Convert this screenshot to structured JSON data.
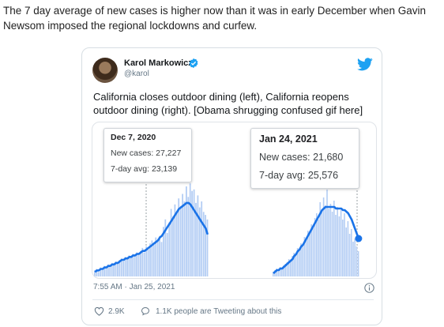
{
  "article": {
    "text": "The 7 day average of new cases is higher now than it was in early December when Gavin Newsom imposed the regional lockdowns and curfew."
  },
  "tweet": {
    "author_name": "Karol Markowicz",
    "handle": "@karol",
    "text": "California closes outdoor dining (left), California reopens outdoor dining (right). [Obama shrugging confused gif here]",
    "timestamp": "7:55 AM · Jan 25, 2021",
    "likes": "2.9K",
    "replies_text": "1.1K people are Tweeting about this",
    "icons": [
      "avatar",
      "verified-badge-icon",
      "twitter-bird-icon",
      "info-icon",
      "heart-icon",
      "speech-bubble-icon"
    ],
    "colors": {
      "brand": "#1da1f2",
      "line": "#1a73e8",
      "bars": "#b3cdf4"
    }
  },
  "media": {
    "left_tooltip": {
      "date": "Dec 7, 2020",
      "new_cases": "New cases: 27,227",
      "avg": "7-day avg: 23,139"
    },
    "right_tooltip": {
      "date": "Jan 24, 2021",
      "new_cases": "New cases: 21,680",
      "avg": "7-day avg: 25,576"
    }
  },
  "chart_data": [
    {
      "type": "bar",
      "subtitle_values": {
        "date": "Dec 7, 2020",
        "new_cases": 27227,
        "seven_day_avg": 23139
      },
      "series": [
        {
          "name": "",
          "type": "bar",
          "values": [
            4,
            5,
            3,
            6,
            5,
            7,
            6,
            8,
            7,
            9,
            8,
            10,
            9,
            11,
            12,
            10,
            13,
            12,
            14,
            13,
            15,
            14,
            16,
            15,
            17,
            19,
            16,
            20,
            18,
            22,
            24,
            21,
            26,
            25,
            27,
            23,
            33,
            38,
            29,
            36,
            45,
            40,
            48,
            42,
            52,
            47,
            55,
            50,
            60,
            53,
            62,
            57,
            58,
            49,
            54,
            46,
            50,
            43,
            41,
            38
          ]
        },
        {
          "name": "",
          "type": "line",
          "values": [
            3,
            4,
            4,
            5,
            5,
            6,
            6,
            7,
            7,
            8,
            8,
            9,
            9,
            10,
            11,
            11,
            12,
            12,
            13,
            13,
            14,
            14,
            15,
            15,
            16,
            17,
            17,
            18,
            19,
            20,
            21,
            22,
            23,
            24,
            26,
            27,
            29,
            31,
            33,
            35,
            37,
            39,
            41,
            43,
            45,
            46,
            47,
            48,
            49,
            49,
            48,
            46,
            44,
            42,
            40,
            38,
            36,
            34,
            32,
            28
          ]
        }
      ]
    },
    {
      "type": "bar",
      "subtitle_values": {
        "date": "Jan 24, 2021",
        "new_cases": 21680,
        "seven_day_avg": 25576
      },
      "series": [
        {
          "name": "",
          "type": "bar",
          "values": [
            3,
            4,
            5,
            4,
            6,
            5,
            7,
            8,
            9,
            11,
            10,
            13,
            15,
            14,
            18,
            17,
            21,
            20,
            25,
            24,
            29,
            28,
            33,
            31,
            37,
            40,
            36,
            47,
            42,
            50,
            45,
            55,
            43,
            46,
            41,
            48,
            39,
            44,
            38,
            42,
            36,
            40,
            31,
            35,
            27,
            30,
            22,
            24,
            19,
            16
          ]
        },
        {
          "name": "",
          "type": "line",
          "values": [
            2,
            3,
            4,
            4,
            5,
            5,
            6,
            7,
            8,
            9,
            10,
            11,
            13,
            14,
            16,
            17,
            19,
            20,
            22,
            24,
            26,
            28,
            30,
            32,
            34,
            36,
            38,
            40,
            42,
            43,
            44,
            44,
            44,
            44,
            44,
            44,
            43,
            43,
            43,
            43,
            42,
            42,
            41,
            40,
            38,
            36,
            33,
            30,
            27,
            24
          ]
        }
      ]
    }
  ]
}
